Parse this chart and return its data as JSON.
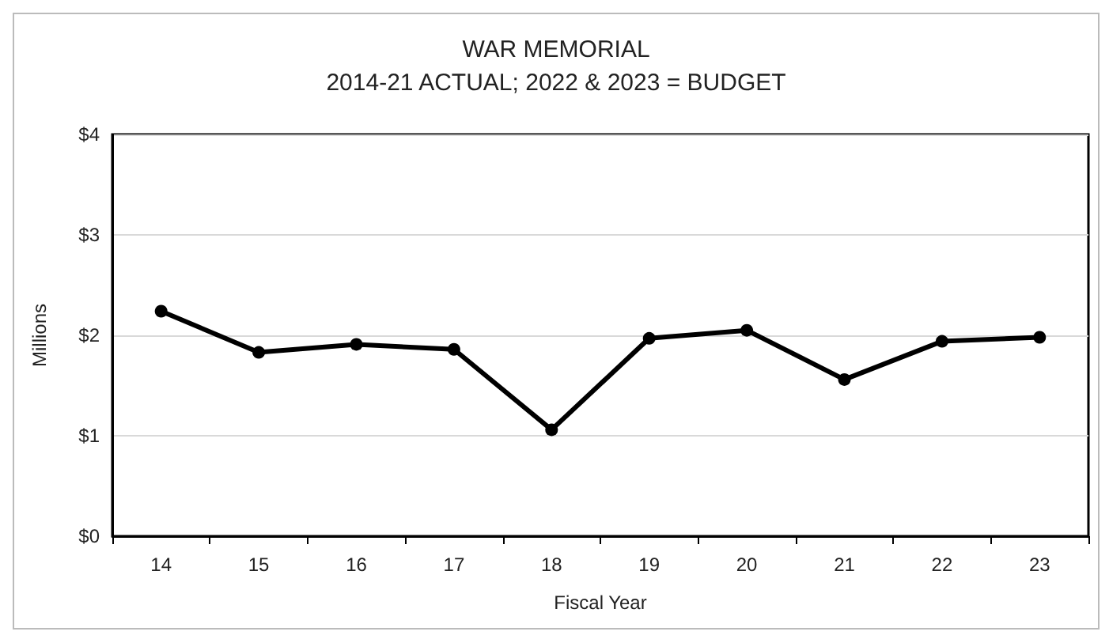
{
  "chart_data": {
    "type": "line",
    "title": "WAR MEMORIAL",
    "subtitle": "2014-21 ACTUAL; 2022 & 2023 = BUDGET",
    "xlabel": "Fiscal Year",
    "ylabel": "Millions",
    "categories": [
      "14",
      "15",
      "16",
      "17",
      "18",
      "19",
      "20",
      "21",
      "22",
      "23"
    ],
    "series": [
      {
        "color": "#000000",
        "values": [
          2.24,
          1.83,
          1.91,
          1.86,
          1.06,
          1.97,
          2.05,
          1.56,
          1.94,
          1.98
        ]
      }
    ],
    "ylim": [
      0,
      4
    ],
    "yticks": [
      {
        "value": 0,
        "label": "$0"
      },
      {
        "value": 1,
        "label": "$1"
      },
      {
        "value": 2,
        "label": "$2"
      },
      {
        "value": 3,
        "label": "$3"
      },
      {
        "value": 4,
        "label": "$4"
      }
    ],
    "grid": "y",
    "marker": "circle",
    "line_style": "solid"
  }
}
